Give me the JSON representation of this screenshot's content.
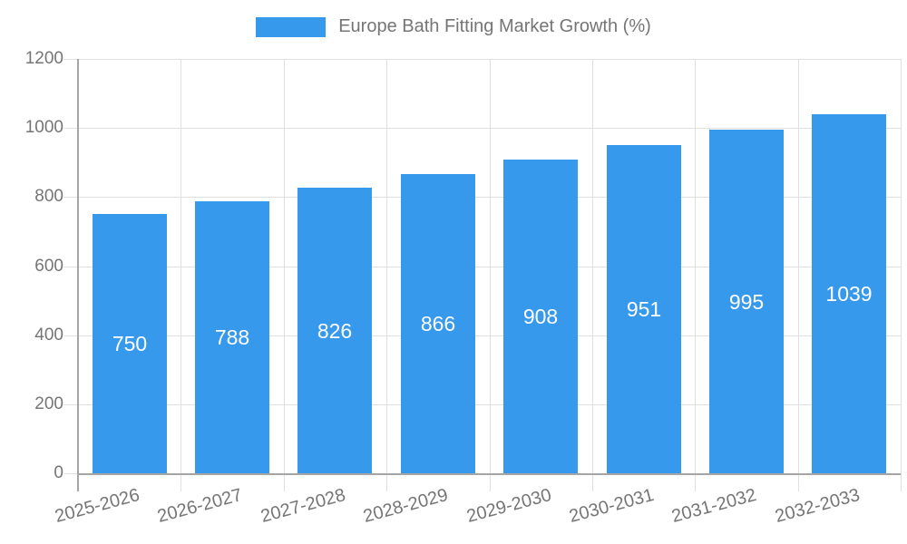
{
  "chart_data": {
    "type": "bar",
    "title": "Europe Bath Fitting Market Growth (%)",
    "xlabel": "",
    "ylabel": "",
    "categories": [
      "2025-2026",
      "2026-2027",
      "2027-2028",
      "2028-2029",
      "2029-2030",
      "2030-2031",
      "2031-2032",
      "2032-2033"
    ],
    "values": [
      750,
      788,
      826,
      866,
      908,
      951,
      995,
      1039
    ],
    "ylim": [
      0,
      1200
    ],
    "yticks": [
      0,
      200,
      400,
      600,
      800,
      1000,
      1200
    ],
    "grid": "both",
    "x_label_rotation_deg": -15,
    "legend": {
      "position": "top",
      "entries": [
        "Europe Bath Fitting Market Growth (%)"
      ]
    },
    "colors": {
      "bar": "#3799EC",
      "data_label": "#FFFFFF",
      "axis": "#A5A5A5",
      "gridline": "#E0E0E0",
      "text": "#757575"
    }
  }
}
